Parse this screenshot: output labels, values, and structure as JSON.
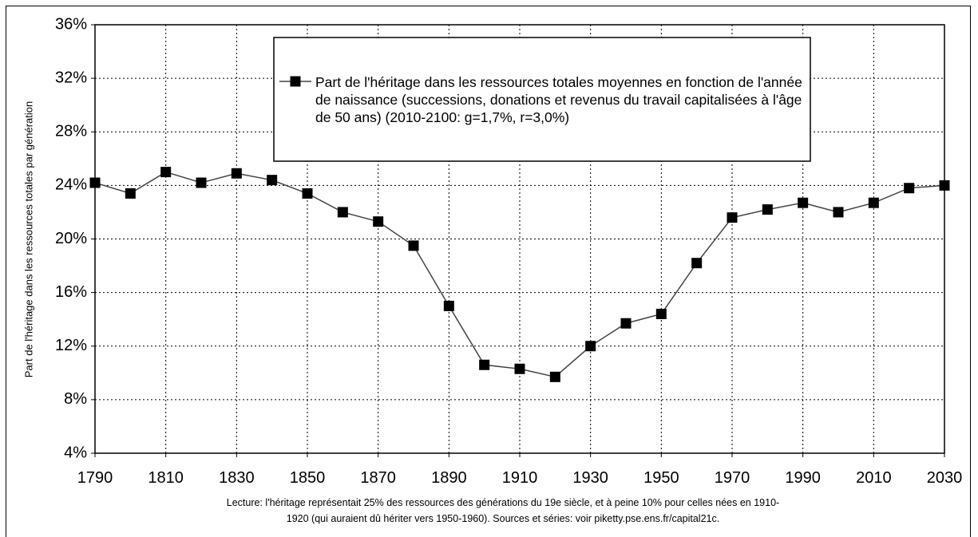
{
  "chart_data": {
    "type": "line",
    "y_label": "Part de l'héritage dans les ressources totales par génération",
    "caption": [
      "Lecture: l'héritage représentait 25% des ressources des générations du 19e siècle, et à peine 10% pour celles nées en 1910-",
      "1920 (qui auraient dû hériter vers 1950-1960). Sources et séries: voir piketty.pse.ens.fr/capital21c."
    ],
    "x": [
      1790,
      1800,
      1810,
      1820,
      1830,
      1840,
      1850,
      1860,
      1870,
      1880,
      1890,
      1900,
      1910,
      1920,
      1930,
      1940,
      1950,
      1960,
      1970,
      1980,
      1990,
      2000,
      2010,
      2020,
      2030
    ],
    "series": [
      {
        "name": "Part de l'héritage dans les ressources totales moyennes en fonction de l'année de naissance (successions, donations et revenus du travail capitalisées à l'âge de 50 ans) (2010-2100: g=1,7%, r=3,0%)",
        "color": "#000000",
        "values": [
          24.2,
          23.4,
          25.0,
          24.2,
          24.9,
          24.4,
          23.4,
          22.0,
          21.3,
          19.5,
          15.0,
          10.6,
          10.3,
          9.7,
          12.0,
          13.7,
          14.4,
          18.2,
          21.6,
          22.2,
          22.7,
          22.0,
          22.7,
          23.8,
          24.0
        ]
      }
    ],
    "xlim": [
      1790,
      2030
    ],
    "xticks": [
      1790,
      1810,
      1830,
      1850,
      1870,
      1890,
      1910,
      1930,
      1950,
      1970,
      1990,
      2010,
      2030
    ],
    "ylim": [
      4,
      36
    ],
    "yticks": [
      {
        "value": 4,
        "label": "4%"
      },
      {
        "value": 8,
        "label": "8%"
      },
      {
        "value": 12,
        "label": "12%"
      },
      {
        "value": 16,
        "label": "16%"
      },
      {
        "value": 20,
        "label": "20%"
      },
      {
        "value": 24,
        "label": "24%"
      },
      {
        "value": 28,
        "label": "28%"
      },
      {
        "value": 32,
        "label": "32%"
      },
      {
        "value": 36,
        "label": "36%"
      }
    ],
    "grid": true
  }
}
